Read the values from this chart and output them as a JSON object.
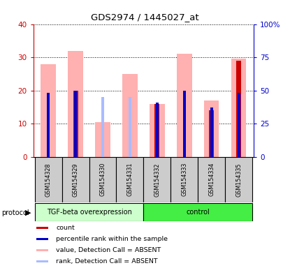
{
  "title": "GDS2974 / 1445027_at",
  "samples": [
    "GSM154328",
    "GSM154329",
    "GSM154330",
    "GSM154331",
    "GSM154332",
    "GSM154333",
    "GSM154334",
    "GSM154335"
  ],
  "pink_values": [
    28.0,
    32.0,
    10.5,
    25.0,
    16.0,
    31.0,
    17.0,
    29.5
  ],
  "red_values": [
    0.0,
    20.0,
    0.0,
    0.0,
    16.0,
    0.0,
    14.0,
    29.0
  ],
  "blue_pct": [
    48.0,
    50.0,
    0.0,
    0.0,
    41.0,
    50.0,
    37.0,
    48.0
  ],
  "lightblue_pct": [
    0.0,
    0.0,
    45.0,
    45.0,
    0.0,
    0.0,
    0.0,
    0.0
  ],
  "group1_label": "TGF-beta overexpression",
  "group2_label": "control",
  "group1_count": 4,
  "group2_count": 4,
  "ylim_left": [
    0,
    40
  ],
  "ylim_right": [
    0,
    100
  ],
  "yticks_left": [
    0,
    10,
    20,
    30,
    40
  ],
  "yticks_right": [
    0,
    25,
    50,
    75,
    100
  ],
  "yticklabels_left": [
    "0",
    "10",
    "20",
    "30",
    "40"
  ],
  "yticklabels_right": [
    "0",
    "25",
    "50",
    "75",
    "100%"
  ],
  "color_red": "#cc0000",
  "color_pink": "#ffb0b0",
  "color_blue": "#0000cc",
  "color_lightblue": "#aabbff",
  "color_group1_bg": "#ccffcc",
  "color_group2_bg": "#44ee44",
  "color_axis_left": "#cc0000",
  "color_axis_right": "#0000cc",
  "bg_color": "#ffffff",
  "box_color": "#cccccc"
}
